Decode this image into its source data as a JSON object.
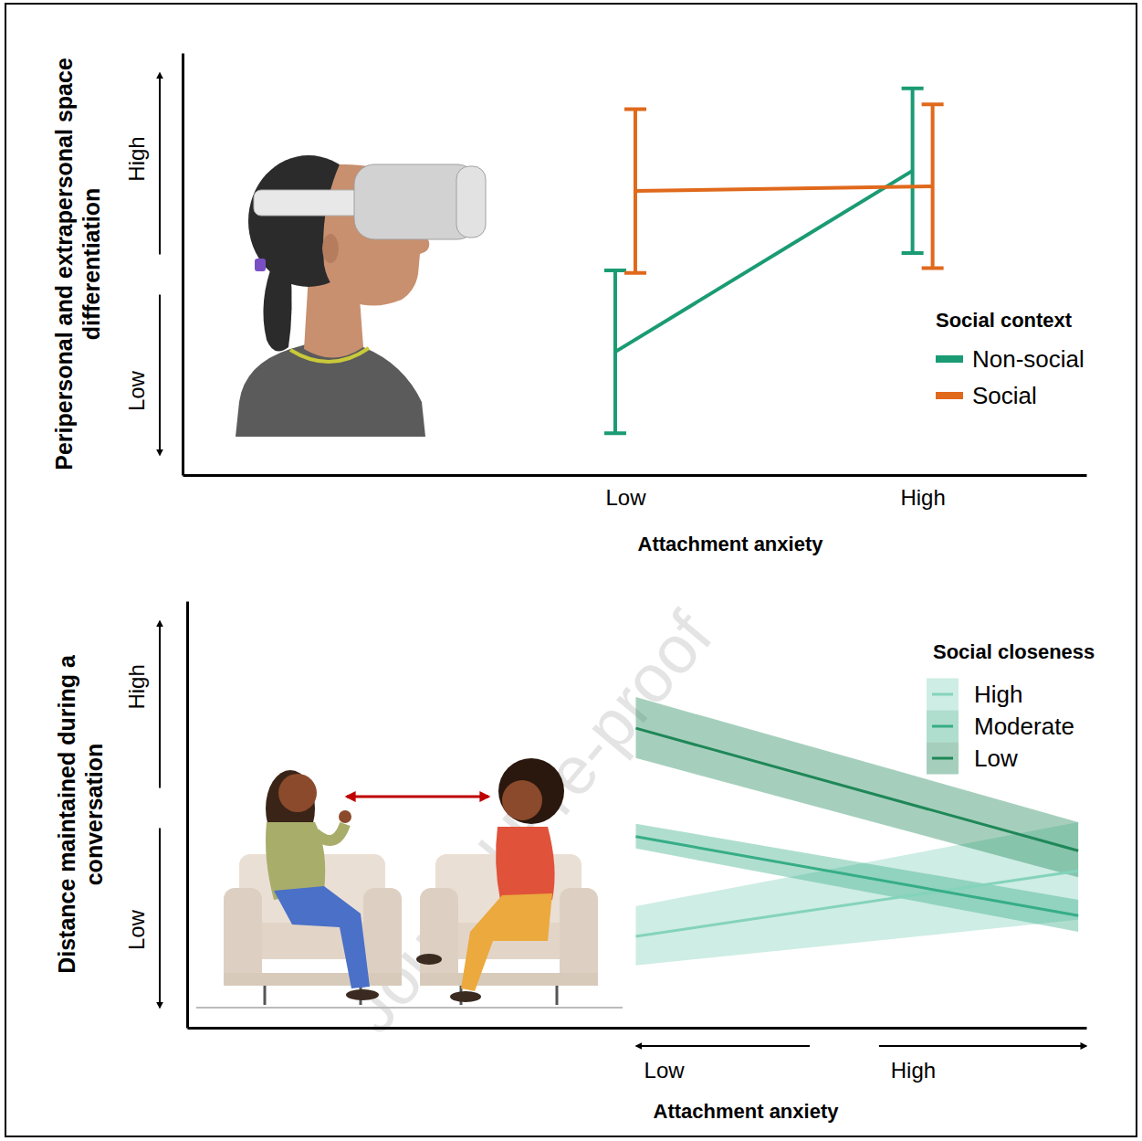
{
  "watermark": "Journal Pre-proof",
  "chart_data": [
    {
      "type": "line",
      "xlabel": "Attachment anxiety",
      "ylabel": "Peripersonal and extrapersonal space differentiation",
      "categories": [
        "Low",
        "High"
      ],
      "ylim": [
        0,
        10
      ],
      "yticks": [
        {
          "value": 2,
          "label": "Low"
        },
        {
          "value": 7.5,
          "label": "High"
        }
      ],
      "legend_title": "Social context",
      "legend": "right",
      "series": [
        {
          "name": "Non-social",
          "color": "#1a9b73",
          "values": [
            2.92,
            7.21
          ],
          "errors": [
            1.93,
            1.95
          ]
        },
        {
          "name": "Social",
          "color": "#e0691c",
          "values": [
            6.73,
            6.84
          ],
          "errors": [
            1.94,
            1.94
          ]
        }
      ]
    },
    {
      "type": "line",
      "xlabel": "Attachment anxiety",
      "ylabel": "Distance maintained during a conversation",
      "x": [
        4.99,
        9.91
      ],
      "xlim": [
        0,
        10
      ],
      "xticks": [
        {
          "value": 5.3,
          "label": "Low"
        },
        {
          "value": 8.07,
          "label": "High"
        }
      ],
      "ylim": [
        0,
        10
      ],
      "yticks": [
        {
          "value": 2.3,
          "label": "Low"
        },
        {
          "value": 8,
          "label": "High"
        }
      ],
      "legend_title": "Social closeness",
      "legend": "top-right",
      "series": [
        {
          "name": "High",
          "color": "#84d3bc",
          "values": [
            2.14,
            3.68
          ],
          "lower": [
            1.46,
            2.53
          ],
          "upper": [
            2.85,
            4.82
          ]
        },
        {
          "name": "Moderate",
          "color": "#36ad86",
          "values": [
            4.48,
            2.63
          ],
          "lower": [
            4.2,
            2.25
          ],
          "upper": [
            4.78,
            3
          ]
        },
        {
          "name": "Low",
          "color": "#1f8758",
          "values": [
            7.02,
            4.15
          ],
          "lower": [
            6.32,
            3.53
          ],
          "upper": [
            7.75,
            4.82
          ]
        }
      ]
    }
  ]
}
